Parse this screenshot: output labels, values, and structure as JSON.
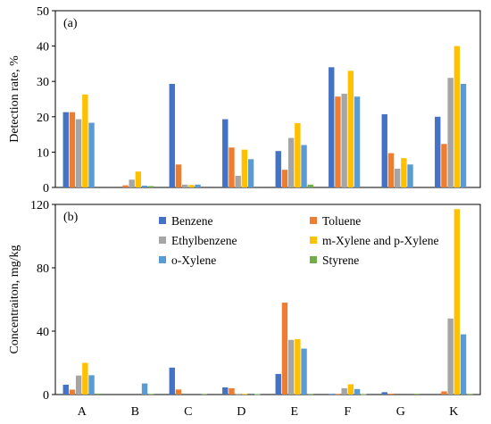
{
  "chart_data": [
    {
      "type": "bar",
      "panel_label": "(a)",
      "ylabel": "Detection rate, %",
      "xlabel": "",
      "ylim": [
        0,
        50
      ],
      "yticks": [
        0,
        10,
        20,
        30,
        40,
        50
      ],
      "categories": [
        "A",
        "B",
        "C",
        "D",
        "E",
        "F",
        "G",
        "K"
      ],
      "series": [
        {
          "name": "Benzene",
          "color": "#4472C4",
          "values": [
            21.3,
            0,
            29.3,
            19.3,
            10.3,
            34,
            20.7,
            20
          ]
        },
        {
          "name": "Toluene",
          "color": "#ED7D31",
          "values": [
            21.3,
            0.6,
            6.5,
            11.3,
            5,
            25.7,
            9.7,
            12.3
          ]
        },
        {
          "name": "Ethylbenzene",
          "color": "#A5A5A5",
          "values": [
            19.3,
            2.2,
            0.8,
            3.3,
            14,
            26.5,
            5.3,
            31
          ]
        },
        {
          "name": "m-Xylene and p-Xylene",
          "color": "#FFC000",
          "values": [
            26.3,
            4.5,
            0.7,
            10.7,
            18.2,
            33,
            8.3,
            40
          ]
        },
        {
          "name": "o-Xylene",
          "color": "#5B9BD5",
          "values": [
            18.3,
            0.5,
            0.8,
            8,
            12,
            25.7,
            6.5,
            29.3
          ]
        },
        {
          "name": "Styrene",
          "color": "#70AD47",
          "values": [
            0,
            0.4,
            0,
            0,
            0.8,
            0,
            0,
            0
          ]
        }
      ]
    },
    {
      "type": "bar",
      "panel_label": "(b)",
      "ylabel": "Concentraiton, mg/kg",
      "xlabel": "",
      "ylim": [
        0,
        120
      ],
      "yticks": [
        0,
        40,
        80,
        120
      ],
      "categories": [
        "A",
        "B",
        "C",
        "D",
        "E",
        "F",
        "G",
        "K"
      ],
      "legend": "inside-top",
      "series": [
        {
          "name": "Benzene",
          "color": "#4472C4",
          "values": [
            6.2,
            0,
            17,
            4.5,
            13,
            0.4,
            1.5,
            0
          ]
        },
        {
          "name": "Toluene",
          "color": "#ED7D31",
          "values": [
            3.1,
            0,
            3.2,
            4,
            58,
            0.4,
            0.5,
            2
          ]
        },
        {
          "name": "Ethylbenzene",
          "color": "#A5A5A5",
          "values": [
            12,
            0,
            0,
            0.4,
            34.5,
            4,
            0,
            48
          ]
        },
        {
          "name": "m-Xylene and p-Xylene",
          "color": "#FFC000",
          "values": [
            20,
            0,
            0,
            0.4,
            35,
            6.5,
            0,
            117
          ]
        },
        {
          "name": "o-Xylene",
          "color": "#5B9BD5",
          "values": [
            12.2,
            7,
            0,
            0,
            29,
            3.5,
            0,
            38
          ]
        },
        {
          "name": "Styrene",
          "color": "#70AD47",
          "values": [
            0.6,
            0.4,
            0.4,
            0.3,
            0.4,
            0.3,
            0.5,
            0.4
          ]
        }
      ]
    }
  ]
}
